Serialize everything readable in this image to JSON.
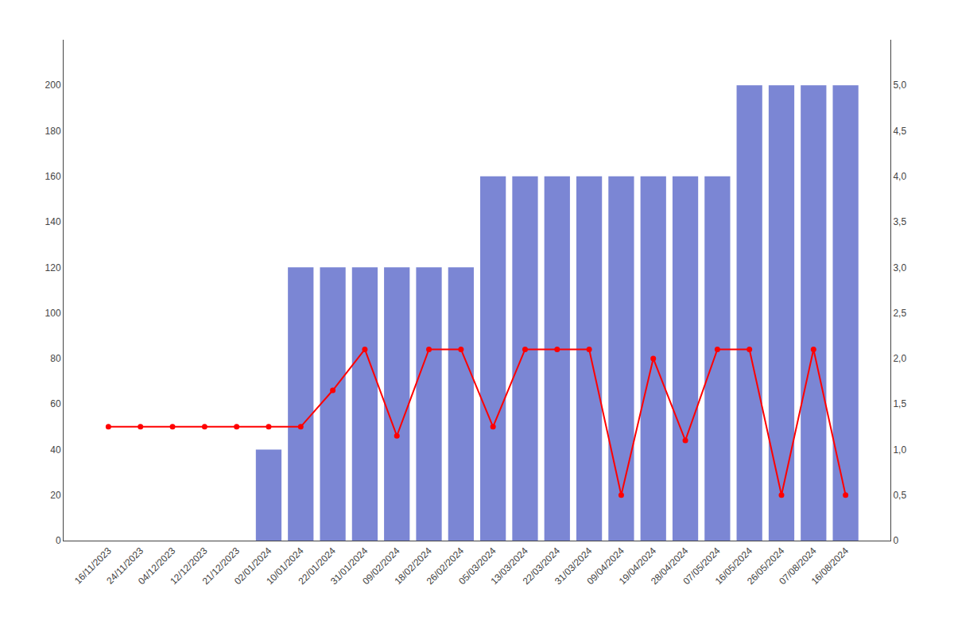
{
  "chart_data": {
    "type": "bar",
    "categories": [
      "16/11/2023",
      "24/11/2023",
      "04/12/2023",
      "12/12/2023",
      "21/12/2023",
      "02/01/2024",
      "10/01/2024",
      "22/01/2024",
      "31/01/2024",
      "09/02/2024",
      "18/02/2024",
      "26/02/2024",
      "05/03/2024",
      "13/03/2024",
      "22/03/2024",
      "31/03/2024",
      "09/04/2024",
      "19/04/2024",
      "28/04/2024",
      "07/05/2024",
      "16/05/2024",
      "26/05/2024",
      "07/08/2024",
      "16/08/2024"
    ],
    "series": [
      {
        "type": "bar",
        "color": "#7B86D4",
        "values": [
          0,
          0,
          0,
          0,
          0,
          40,
          120,
          120,
          120,
          120,
          120,
          120,
          160,
          160,
          160,
          160,
          160,
          160,
          160,
          160,
          200,
          200,
          200,
          200
        ]
      },
      {
        "type": "line",
        "axis": "y2",
        "color": "#FF0000",
        "marker": "circle",
        "line_style": "solid",
        "values": [
          1.25,
          1.25,
          1.25,
          1.25,
          1.25,
          1.25,
          1.25,
          1.65,
          2.1,
          1.15,
          2.1,
          2.1,
          1.25,
          2.1,
          2.1,
          2.1,
          0.5,
          2.0,
          1.1,
          2.1,
          2.1,
          0.5,
          2.1,
          0.5
        ]
      }
    ],
    "ylim": [
      0,
      220
    ],
    "yticks": [
      0,
      20,
      40,
      60,
      80,
      100,
      120,
      140,
      160,
      180,
      200
    ],
    "y2lim": [
      0,
      5.5
    ],
    "y2ticks": [
      0,
      {
        "value": 0.5,
        "label": "0,5"
      },
      {
        "value": 1.0,
        "label": "1,0"
      },
      {
        "value": 1.5,
        "label": "1,5"
      },
      {
        "value": 2.0,
        "label": "2,0"
      },
      {
        "value": 2.5,
        "label": "2,5"
      },
      {
        "value": 3.0,
        "label": "3,0"
      },
      {
        "value": 3.5,
        "label": "3,5"
      },
      {
        "value": 4.0,
        "label": "4,0"
      },
      {
        "value": 4.5,
        "label": "4,5"
      },
      {
        "value": 5.0,
        "label": "5,0"
      }
    ],
    "grid": false
  }
}
